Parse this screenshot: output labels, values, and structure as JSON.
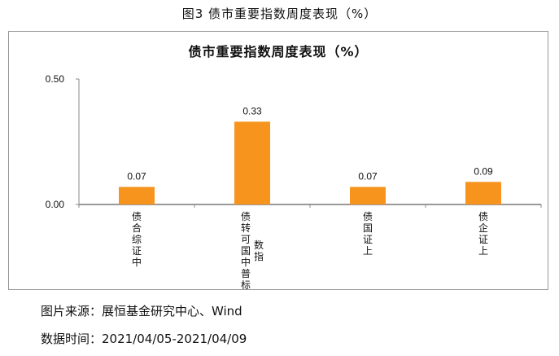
{
  "figure_title": "图3 债市重要指数周度表现（%）",
  "chart_data": {
    "type": "bar",
    "title": "债市重要指数周度表现（%）",
    "categories": [
      "中证综合债",
      "标普中国可转债指数",
      "上证国债",
      "上证企债"
    ],
    "values": [
      0.07,
      0.33,
      0.07,
      0.09
    ],
    "value_labels": [
      "0.07",
      "0.33",
      "0.07",
      "0.09"
    ],
    "yticks": [
      "0.00",
      "0.50"
    ],
    "ylim": [
      0,
      0.5
    ],
    "xlabel": "",
    "ylabel": "",
    "grid": false,
    "bar_color": "#F7941D"
  },
  "captions": {
    "source": "图片来源：展恒基金研究中心、Wind",
    "date": "数据时间：2021/04/05-2021/04/09"
  }
}
